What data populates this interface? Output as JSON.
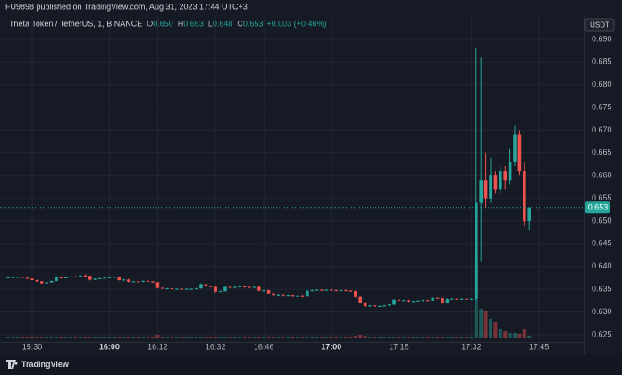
{
  "header": "FU9898 published on TradingView.com, Aug 31, 2023 17:44 UTC+3",
  "footer": "TradingView",
  "chart_data": {
    "type": "candlestick",
    "title": "Theta Token / TetherUS, 1, BINANCE",
    "legend": [
      {
        "key": "O",
        "value": "0.650"
      },
      {
        "key": "H",
        "value": "0.653"
      },
      {
        "key": "L",
        "value": "0.648"
      },
      {
        "key": "C",
        "value": "0.653"
      }
    ],
    "change": "+0.003 (+0.46%)",
    "currency": "USDT",
    "last_price": {
      "value": 0.653,
      "label": "0.653"
    },
    "up_color": "#26a69a",
    "down_color": "#ef5350",
    "grid": true,
    "ylim": [
      0.6234,
      0.6951
    ],
    "yticks": [
      {
        "value": 0.625,
        "label": "0.625"
      },
      {
        "value": 0.63,
        "label": "0.630"
      },
      {
        "value": 0.635,
        "label": "0.635"
      },
      {
        "value": 0.64,
        "label": "0.640"
      },
      {
        "value": 0.645,
        "label": "0.645"
      },
      {
        "value": 0.65,
        "label": "0.650"
      },
      {
        "value": 0.655,
        "label": "0.655"
      },
      {
        "value": 0.66,
        "label": "0.660"
      },
      {
        "value": 0.665,
        "label": "0.665"
      },
      {
        "value": 0.67,
        "label": "0.670"
      },
      {
        "value": 0.675,
        "label": "0.675"
      },
      {
        "value": 0.68,
        "label": "0.680"
      },
      {
        "value": 0.685,
        "label": "0.685"
      },
      {
        "value": 0.69,
        "label": "0.690"
      }
    ],
    "categories": [
      null,
      null,
      null,
      null,
      null,
      "15:30",
      null,
      null,
      null,
      null,
      null,
      null,
      null,
      null,
      null,
      null,
      null,
      null,
      null,
      null,
      null,
      "16:00",
      null,
      null,
      null,
      null,
      null,
      null,
      null,
      null,
      null,
      "16:12",
      null,
      null,
      null,
      null,
      null,
      null,
      null,
      null,
      null,
      null,
      null,
      "16:32",
      null,
      null,
      null,
      null,
      null,
      null,
      null,
      null,
      null,
      "16:46",
      null,
      null,
      null,
      null,
      null,
      null,
      null,
      null,
      null,
      null,
      null,
      null,
      null,
      "17:00",
      null,
      null,
      null,
      null,
      null,
      null,
      null,
      null,
      null,
      null,
      null,
      null,
      null,
      "17:15",
      null,
      null,
      null,
      null,
      null,
      null,
      null,
      null,
      null,
      null,
      null,
      null,
      null,
      null,
      "17:32",
      null,
      null,
      null,
      null,
      null,
      null,
      null,
      null,
      null,
      null,
      null,
      null,
      null,
      "17:45"
    ],
    "ohlc": [
      [
        0.6375,
        0.6378,
        0.6374,
        0.6376
      ],
      [
        0.6376,
        0.6377,
        0.6375,
        0.6376
      ],
      [
        0.6376,
        0.6378,
        0.6376,
        0.6377
      ],
      [
        0.6377,
        0.6378,
        0.6375,
        0.6375
      ],
      [
        0.6375,
        0.6376,
        0.6372,
        0.6373
      ],
      [
        0.6373,
        0.6374,
        0.637,
        0.637
      ],
      [
        0.637,
        0.6371,
        0.6366,
        0.6367
      ],
      [
        0.6367,
        0.6368,
        0.6362,
        0.6363
      ],
      [
        0.6363,
        0.6366,
        0.6362,
        0.6365
      ],
      [
        0.6365,
        0.6369,
        0.6364,
        0.6368
      ],
      [
        0.6368,
        0.6378,
        0.6367,
        0.6376
      ],
      [
        0.6376,
        0.6377,
        0.6374,
        0.6375
      ],
      [
        0.6375,
        0.6377,
        0.6374,
        0.6376
      ],
      [
        0.6376,
        0.6379,
        0.6375,
        0.6378
      ],
      [
        0.6378,
        0.6379,
        0.6376,
        0.6377
      ],
      [
        0.6377,
        0.6381,
        0.6376,
        0.638
      ],
      [
        0.638,
        0.6383,
        0.6378,
        0.6379
      ],
      [
        0.6379,
        0.638,
        0.6369,
        0.6371
      ],
      [
        0.6371,
        0.6374,
        0.637,
        0.6373
      ],
      [
        0.6373,
        0.6375,
        0.6372,
        0.6374
      ],
      [
        0.6374,
        0.6376,
        0.6373,
        0.6375
      ],
      [
        0.6375,
        0.6377,
        0.6374,
        0.6376
      ],
      [
        0.6376,
        0.6378,
        0.6375,
        0.6377
      ],
      [
        0.6377,
        0.6378,
        0.6369,
        0.637
      ],
      [
        0.637,
        0.6372,
        0.6369,
        0.6371
      ],
      [
        0.6371,
        0.6373,
        0.6365,
        0.6366
      ],
      [
        0.6366,
        0.6368,
        0.6365,
        0.6367
      ],
      [
        0.6367,
        0.6368,
        0.6365,
        0.6366
      ],
      [
        0.6366,
        0.6369,
        0.6365,
        0.6368
      ],
      [
        0.6368,
        0.6369,
        0.6366,
        0.6367
      ],
      [
        0.6367,
        0.6368,
        0.6364,
        0.6365
      ],
      [
        0.6365,
        0.6366,
        0.6352,
        0.6353
      ],
      [
        0.6353,
        0.6354,
        0.6351,
        0.6352
      ],
      [
        0.6352,
        0.6353,
        0.6351,
        0.6352
      ],
      [
        0.6352,
        0.6353,
        0.635,
        0.6351
      ],
      [
        0.6351,
        0.6352,
        0.635,
        0.6351
      ],
      [
        0.6351,
        0.6352,
        0.6349,
        0.635
      ],
      [
        0.635,
        0.6352,
        0.6349,
        0.6351
      ],
      [
        0.6351,
        0.6352,
        0.635,
        0.6351
      ],
      [
        0.6351,
        0.6353,
        0.635,
        0.6352
      ],
      [
        0.6352,
        0.6363,
        0.6351,
        0.6361
      ],
      [
        0.6361,
        0.6362,
        0.6356,
        0.6357
      ],
      [
        0.6357,
        0.6358,
        0.6354,
        0.6355
      ],
      [
        0.6355,
        0.6356,
        0.6343,
        0.6345
      ],
      [
        0.6345,
        0.6347,
        0.6344,
        0.6346
      ],
      [
        0.6346,
        0.6356,
        0.6345,
        0.6355
      ],
      [
        0.6355,
        0.6356,
        0.6353,
        0.6354
      ],
      [
        0.6354,
        0.6356,
        0.6353,
        0.6355
      ],
      [
        0.6355,
        0.6357,
        0.6354,
        0.6356
      ],
      [
        0.6356,
        0.6357,
        0.6354,
        0.6355
      ],
      [
        0.6355,
        0.6356,
        0.6353,
        0.6354
      ],
      [
        0.6354,
        0.6356,
        0.6353,
        0.6355
      ],
      [
        0.6355,
        0.6356,
        0.6346,
        0.6347
      ],
      [
        0.6347,
        0.6349,
        0.6345,
        0.6348
      ],
      [
        0.6348,
        0.6349,
        0.634,
        0.6341
      ],
      [
        0.6341,
        0.6343,
        0.6335,
        0.6336
      ],
      [
        0.6336,
        0.6338,
        0.6334,
        0.6337
      ],
      [
        0.6337,
        0.6338,
        0.6334,
        0.6335
      ],
      [
        0.6335,
        0.6337,
        0.6334,
        0.6336
      ],
      [
        0.6336,
        0.6337,
        0.6333,
        0.6334
      ],
      [
        0.6334,
        0.6336,
        0.6333,
        0.6335
      ],
      [
        0.6335,
        0.6336,
        0.6333,
        0.6334
      ],
      [
        0.6334,
        0.6349,
        0.6333,
        0.6347
      ],
      [
        0.6347,
        0.6349,
        0.6346,
        0.6348
      ],
      [
        0.6348,
        0.635,
        0.6347,
        0.6349
      ],
      [
        0.6349,
        0.635,
        0.6347,
        0.6348
      ],
      [
        0.6348,
        0.635,
        0.6347,
        0.6349
      ],
      [
        0.6349,
        0.635,
        0.6347,
        0.6348
      ],
      [
        0.6348,
        0.6349,
        0.6346,
        0.6347
      ],
      [
        0.6347,
        0.6349,
        0.6346,
        0.6348
      ],
      [
        0.6348,
        0.6349,
        0.6346,
        0.6347
      ],
      [
        0.6347,
        0.6348,
        0.6345,
        0.6346
      ],
      [
        0.6346,
        0.6347,
        0.6331,
        0.6333
      ],
      [
        0.6333,
        0.6334,
        0.6319,
        0.632
      ],
      [
        0.632,
        0.6322,
        0.6311,
        0.6313
      ],
      [
        0.6313,
        0.6315,
        0.6311,
        0.6314
      ],
      [
        0.6314,
        0.6315,
        0.6311,
        0.6312
      ],
      [
        0.6312,
        0.6314,
        0.6311,
        0.6313
      ],
      [
        0.6313,
        0.6315,
        0.6312,
        0.6314
      ],
      [
        0.6314,
        0.6317,
        0.6313,
        0.6316
      ],
      [
        0.6316,
        0.6328,
        0.6315,
        0.6327
      ],
      [
        0.6327,
        0.6328,
        0.6324,
        0.6325
      ],
      [
        0.6325,
        0.6327,
        0.6324,
        0.6326
      ],
      [
        0.6326,
        0.6327,
        0.6322,
        0.6323
      ],
      [
        0.6323,
        0.6325,
        0.6321,
        0.6324
      ],
      [
        0.6324,
        0.6326,
        0.6323,
        0.6325
      ],
      [
        0.6325,
        0.6327,
        0.6324,
        0.6326
      ],
      [
        0.6326,
        0.6327,
        0.6324,
        0.6325
      ],
      [
        0.6325,
        0.6332,
        0.6324,
        0.6331
      ],
      [
        0.6331,
        0.6332,
        0.6329,
        0.633
      ],
      [
        0.633,
        0.6331,
        0.6318,
        0.632
      ],
      [
        0.632,
        0.633,
        0.6319,
        0.6328
      ],
      [
        0.6328,
        0.633,
        0.6327,
        0.6329
      ],
      [
        0.6329,
        0.633,
        0.6327,
        0.6328
      ],
      [
        0.6328,
        0.633,
        0.6327,
        0.6329
      ],
      [
        0.6329,
        0.633,
        0.6327,
        0.6328
      ],
      [
        0.6328,
        0.633,
        0.6327,
        0.6329
      ],
      [
        0.6329,
        0.688,
        0.6325,
        0.654
      ],
      [
        0.654,
        0.686,
        0.641,
        0.659
      ],
      [
        0.659,
        0.665,
        0.653,
        0.655
      ],
      [
        0.655,
        0.664,
        0.654,
        0.66
      ],
      [
        0.66,
        0.661,
        0.656,
        0.657
      ],
      [
        0.657,
        0.662,
        0.656,
        0.661
      ],
      [
        0.661,
        0.662,
        0.657,
        0.659
      ],
      [
        0.659,
        0.666,
        0.658,
        0.663
      ],
      [
        0.663,
        0.671,
        0.662,
        0.669
      ],
      [
        0.669,
        0.67,
        0.66,
        0.661
      ],
      [
        0.661,
        0.663,
        0.649,
        0.65
      ],
      [
        0.65,
        0.653,
        0.648,
        0.653
      ],
      null,
      null
    ],
    "volume": [
      1,
      1,
      1,
      1,
      1,
      1,
      1,
      1,
      1,
      1,
      2,
      1,
      1,
      1,
      1,
      1,
      1,
      2,
      1,
      1,
      1,
      1,
      1,
      1,
      1,
      1,
      1,
      1,
      1,
      1,
      1,
      4,
      1,
      1,
      1,
      1,
      1,
      1,
      1,
      1,
      2,
      1,
      1,
      2,
      1,
      1,
      1,
      1,
      1,
      1,
      1,
      1,
      2,
      1,
      1,
      1,
      1,
      1,
      1,
      1,
      1,
      1,
      1,
      1,
      1,
      1,
      1,
      1,
      1,
      1,
      1,
      1,
      3,
      4,
      3,
      1,
      1,
      1,
      1,
      1,
      2,
      1,
      1,
      1,
      1,
      1,
      1,
      1,
      1,
      1,
      2,
      1,
      1,
      1,
      1,
      1,
      1,
      90,
      33,
      30,
      22,
      18,
      10,
      8,
      6,
      6,
      5,
      10,
      3,
      null,
      null
    ]
  }
}
